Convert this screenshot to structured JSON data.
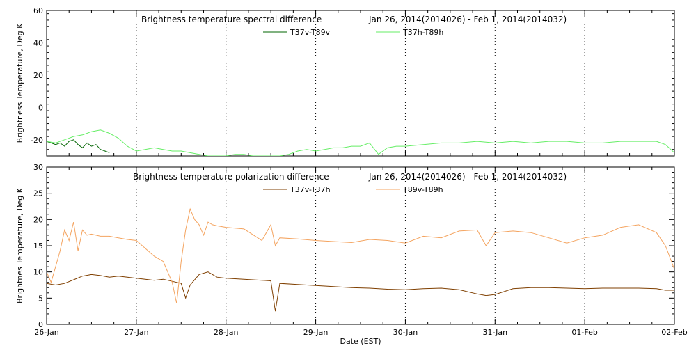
{
  "chart_data": [
    {
      "type": "line",
      "title_left": "Brightness temperature spectral difference",
      "title_right": "Jan 26, 2014(2014026) - Feb  1, 2014(2014032)",
      "ylabel": "Brightness Temperature, Deg K",
      "ylim": [
        -30,
        60
      ],
      "yticks": [
        -20,
        0,
        20,
        40,
        60
      ],
      "xlim": [
        "2014-01-26",
        "2014-02-02"
      ],
      "grid": true,
      "legend_placement": "top-center",
      "series": [
        {
          "name": "T37v-T89v",
          "color": "#006400",
          "x": [
            0.0,
            0.05,
            0.1,
            0.15,
            0.2,
            0.25,
            0.3,
            0.35,
            0.4,
            0.45,
            0.5,
            0.55,
            0.6,
            0.65,
            0.7
          ],
          "y": [
            -21,
            -22,
            -23,
            -22,
            -24,
            -21,
            -20,
            -23,
            -25,
            -22,
            -24,
            -23,
            -26,
            -27,
            -28
          ]
        },
        {
          "name": "T37h-T89h",
          "color": "#66EE66",
          "x": [
            0.0,
            0.1,
            0.2,
            0.3,
            0.4,
            0.5,
            0.6,
            0.7,
            0.8,
            0.9,
            1.0,
            1.1,
            1.2,
            1.3,
            1.4,
            1.5,
            1.6,
            1.7,
            1.8,
            1.9,
            2.0,
            2.1,
            2.2,
            2.3,
            2.4,
            2.5,
            2.6,
            2.7,
            2.8,
            2.9,
            3.0,
            3.1,
            3.2,
            3.3,
            3.4,
            3.5,
            3.6,
            3.7,
            3.8,
            3.9,
            4.0,
            4.2,
            4.4,
            4.6,
            4.8,
            5.0,
            5.2,
            5.4,
            5.6,
            5.8,
            6.0,
            6.2,
            6.4,
            6.6,
            6.8,
            6.9,
            7.0
          ],
          "y": [
            -21,
            -22,
            -20,
            -18,
            -17,
            -15,
            -14,
            -16,
            -19,
            -24,
            -27,
            -26,
            -25,
            -26,
            -27,
            -27,
            -28,
            -29,
            -30,
            -30,
            -30,
            -29,
            -29,
            -30,
            -30,
            -30,
            -30,
            -29,
            -27,
            -26,
            -27,
            -26,
            -25,
            -25,
            -24,
            -24,
            -22,
            -29,
            -25,
            -24,
            -24,
            -23,
            -22,
            -22,
            -21,
            -22,
            -21,
            -22,
            -21,
            -21,
            -22,
            -22,
            -21,
            -21,
            -21,
            -23,
            -28
          ]
        }
      ]
    },
    {
      "type": "line",
      "title_left": "Brightness temperature polarization difference",
      "title_right": "Jan 26, 2014(2014026) - Feb  1, 2014(2014032)",
      "ylabel": "Brightnes Temperature, Deg K",
      "xlabel": "Date (EST)",
      "ylim": [
        0,
        30
      ],
      "yticks": [
        0,
        5,
        10,
        15,
        20,
        25,
        30
      ],
      "xlim": [
        "2014-01-26",
        "2014-02-02"
      ],
      "xticks": [
        "26-Jan",
        "27-Jan",
        "28-Jan",
        "29-Jan",
        "30-Jan",
        "31-Jan",
        "01-Feb",
        "02-Feb"
      ],
      "grid": true,
      "legend_placement": "top-center",
      "series": [
        {
          "name": "T37v-T37h",
          "color": "#7F3F00",
          "x": [
            0.0,
            0.1,
            0.2,
            0.3,
            0.4,
            0.5,
            0.6,
            0.7,
            0.8,
            0.9,
            1.0,
            1.1,
            1.2,
            1.3,
            1.4,
            1.5,
            1.55,
            1.6,
            1.7,
            1.8,
            1.9,
            2.0,
            2.2,
            2.4,
            2.5,
            2.55,
            2.6,
            2.8,
            3.0,
            3.2,
            3.4,
            3.6,
            3.8,
            4.0,
            4.2,
            4.4,
            4.6,
            4.8,
            4.9,
            5.0,
            5.2,
            5.4,
            5.6,
            5.8,
            6.0,
            6.2,
            6.4,
            6.6,
            6.8,
            6.9,
            7.0
          ],
          "y": [
            7.8,
            7.5,
            7.8,
            8.5,
            9.2,
            9.5,
            9.3,
            9.0,
            9.2,
            9.0,
            8.8,
            8.6,
            8.4,
            8.6,
            8.2,
            7.8,
            5.0,
            7.5,
            9.5,
            10.0,
            9.0,
            8.8,
            8.6,
            8.4,
            8.3,
            2.5,
            7.8,
            7.6,
            7.4,
            7.2,
            7.0,
            6.9,
            6.7,
            6.6,
            6.8,
            6.9,
            6.6,
            5.8,
            5.5,
            5.7,
            6.8,
            7.0,
            7.0,
            6.9,
            6.8,
            6.9,
            6.9,
            6.9,
            6.8,
            6.5,
            6.5
          ]
        },
        {
          "name": "T89v-T89h",
          "color": "#F4A460",
          "x": [
            0.0,
            0.05,
            0.1,
            0.15,
            0.2,
            0.25,
            0.3,
            0.35,
            0.4,
            0.45,
            0.5,
            0.55,
            0.6,
            0.7,
            0.8,
            0.9,
            1.0,
            1.1,
            1.2,
            1.3,
            1.4,
            1.45,
            1.5,
            1.55,
            1.6,
            1.65,
            1.7,
            1.75,
            1.8,
            1.85,
            1.9,
            2.0,
            2.2,
            2.4,
            2.5,
            2.55,
            2.6,
            2.8,
            3.0,
            3.2,
            3.4,
            3.6,
            3.8,
            4.0,
            4.2,
            4.4,
            4.6,
            4.8,
            4.9,
            5.0,
            5.2,
            5.4,
            5.6,
            5.8,
            6.0,
            6.2,
            6.4,
            6.6,
            6.8,
            6.9,
            7.0
          ],
          "y": [
            10.0,
            8.0,
            11.0,
            14.0,
            18.0,
            16.0,
            19.5,
            14.0,
            18.0,
            17.0,
            17.2,
            17.0,
            16.8,
            16.8,
            16.5,
            16.2,
            16.0,
            14.5,
            13.0,
            12.0,
            8.0,
            4.0,
            12.0,
            18.0,
            22.0,
            20.0,
            19.0,
            17.0,
            19.5,
            19.0,
            18.8,
            18.5,
            18.2,
            16.0,
            19.0,
            15.0,
            16.5,
            16.3,
            16.0,
            15.8,
            15.6,
            16.2,
            16.0,
            15.5,
            16.8,
            16.5,
            17.8,
            18.0,
            15.0,
            17.5,
            17.8,
            17.5,
            16.5,
            15.5,
            16.5,
            17.0,
            18.5,
            19.0,
            17.5,
            15.0,
            10.5
          ]
        }
      ]
    }
  ]
}
